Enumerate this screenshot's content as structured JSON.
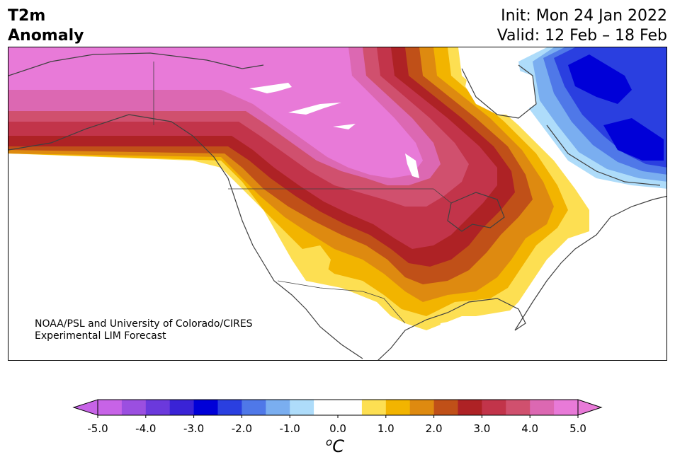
{
  "title": {
    "left_line1": "T2m",
    "left_line2": "Anomaly",
    "right_line1": "Init: Mon 24 Jan 2022",
    "right_line2": "Valid: 12 Feb – 18 Feb"
  },
  "credit": {
    "line1": "NOAA/PSL and University of Colorado/CIRES",
    "line2": "Experimental LIM Forecast"
  },
  "colorbar": {
    "unit_super": "o",
    "unit_main": "C",
    "ticks": [
      "-5.0",
      "-4.0",
      "-3.0",
      "-2.0",
      "-1.0",
      "0.0",
      "1.0",
      "2.0",
      "3.0",
      "4.0",
      "5.0"
    ],
    "tick_values": [
      -5,
      -4,
      -3,
      -2,
      -1,
      0,
      1,
      2,
      3,
      4,
      5
    ],
    "range": [
      -5,
      5
    ],
    "extend": "both",
    "colors": [
      "#c763e7",
      "#9b4fe0",
      "#6b39dc",
      "#3a23d6",
      "#0000d8",
      "#2a3fe0",
      "#4f78e8",
      "#7aaef0",
      "#aedcfa",
      "#ffffff",
      "#ffffff",
      "#fddf52",
      "#f2b400",
      "#de8a10",
      "#c05018",
      "#ae2225",
      "#c2344a",
      "#d0506e",
      "#dc68b2",
      "#e87ad8"
    ]
  },
  "map": {
    "region": "North America",
    "colors": {
      "strong_warm": "#e87ad8",
      "warm4": "#dc68b2",
      "warm35": "#d0506e",
      "warm3": "#c2344a",
      "warm25": "#ae2225",
      "warm2": "#c05018",
      "warm15": "#de8a10",
      "warm1": "#f2b400",
      "warm05": "#fddf52",
      "neutral": "#ffffff",
      "cold1": "#aedcfa",
      "cold15": "#7aaef0",
      "cold2": "#4f78e8",
      "cold25": "#2a3fe0",
      "cold3": "#0000d8",
      "cold35": "#3a23d6",
      "coast": "#404040"
    }
  }
}
